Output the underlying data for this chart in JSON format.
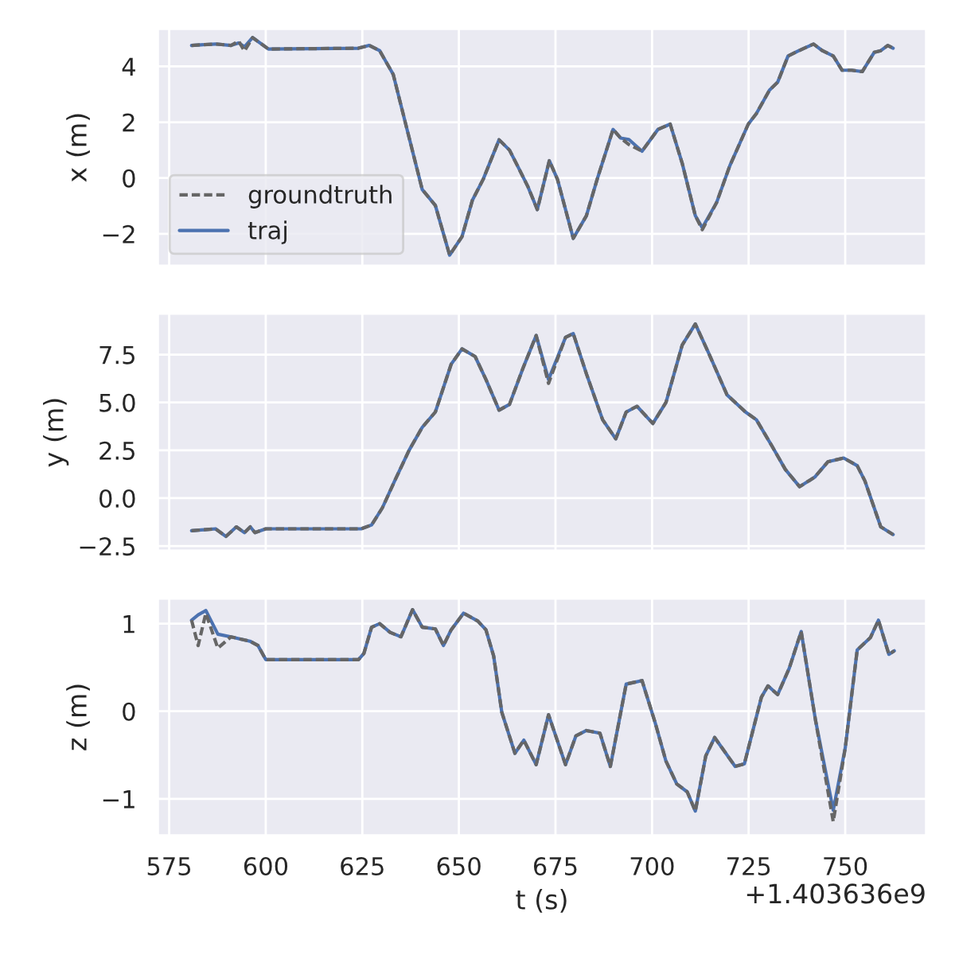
{
  "chart_data": [
    {
      "type": "line",
      "ylabel": "x (m)",
      "legend": "bottom left",
      "grid": true,
      "tick_labels": "y",
      "x": [
        580.8,
        587,
        591,
        593,
        594.5,
        596.6,
        600.7,
        624,
        626.8,
        629.5,
        633,
        636.4,
        640.5,
        643.9,
        647.6,
        650.8,
        653.5,
        656.3,
        660.4,
        663.1,
        665.2,
        667.9,
        670.3,
        673.4,
        675.5,
        679.6,
        683,
        685.8,
        689.9,
        691.9,
        694,
        697.4,
        701.5,
        704.7,
        707.8,
        711.2,
        713,
        716.7,
        720.1,
        724.9,
        727,
        730.4,
        732.5,
        735.2,
        738,
        741.8,
        744.1,
        746.9,
        749.2,
        751.7,
        754.4,
        757.5,
        759.2,
        761,
        762.4
      ],
      "xlim": [
        572,
        771
      ],
      "xticks": [
        575,
        600,
        625,
        650,
        675,
        700,
        725,
        750
      ],
      "ylim": [
        -3.15,
        5.35
      ],
      "yticks": [
        {
          "value": -2,
          "label": "−2"
        },
        0,
        2,
        4
      ],
      "series": [
        {
          "name": "groundtruth",
          "color": "#666666",
          "line_style": "dashed",
          "values": [
            4.75,
            4.8,
            4.75,
            4.9,
            4.55,
            5.03,
            4.62,
            4.65,
            4.75,
            4.56,
            3.71,
            1.84,
            -0.41,
            -0.98,
            -2.76,
            -2.1,
            -0.79,
            -0.04,
            1.37,
            1.0,
            0.43,
            -0.32,
            -1.13,
            0.62,
            -0.04,
            -2.16,
            -1.35,
            -0.04,
            1.74,
            1.43,
            1.2,
            0.96,
            1.74,
            1.93,
            0.53,
            -1.35,
            -1.85,
            -0.88,
            0.43,
            1.93,
            2.31,
            3.15,
            3.43,
            4.37,
            4.56,
            4.8,
            4.56,
            4.37,
            3.86,
            3.86,
            3.81,
            4.5,
            4.56,
            4.75,
            4.65
          ]
        },
        {
          "name": "traj",
          "color": "#4c72b0",
          "line_style": "solid",
          "values": [
            4.75,
            4.8,
            4.75,
            4.84,
            4.7,
            5.03,
            4.62,
            4.65,
            4.75,
            4.56,
            3.71,
            1.84,
            -0.41,
            -0.98,
            -2.76,
            -2.1,
            -0.79,
            -0.04,
            1.37,
            1.0,
            0.43,
            -0.32,
            -1.13,
            0.62,
            -0.04,
            -2.16,
            -1.35,
            -0.04,
            1.74,
            1.43,
            1.38,
            0.96,
            1.74,
            1.93,
            0.53,
            -1.35,
            -1.78,
            -0.88,
            0.43,
            1.93,
            2.31,
            3.15,
            3.43,
            4.37,
            4.56,
            4.8,
            4.56,
            4.37,
            3.86,
            3.86,
            3.81,
            4.5,
            4.56,
            4.75,
            4.65
          ]
        }
      ]
    },
    {
      "type": "line",
      "ylabel": "y (m)",
      "grid": true,
      "tick_labels": "y",
      "x": [
        580.8,
        587,
        589.7,
        592.4,
        594.5,
        596,
        597.2,
        600,
        624.7,
        627.4,
        630.2,
        633.6,
        637.1,
        640.5,
        643.9,
        648,
        650.8,
        654.2,
        657,
        660.4,
        663.1,
        666.6,
        670,
        673.2,
        677.6,
        679.6,
        683,
        687.2,
        690.6,
        693.3,
        696.1,
        700.2,
        703.6,
        707.8,
        711.2,
        714.6,
        719.4,
        724.2,
        727,
        731.1,
        734.5,
        738.2,
        742.1,
        745.5,
        749.6,
        753.1,
        755.1,
        759.2,
        762.4
      ],
      "xlim": [
        572,
        771
      ],
      "xticks": [
        575,
        600,
        625,
        650,
        675,
        700,
        725,
        750
      ],
      "ylim": [
        -2.75,
        9.65
      ],
      "yticks": [
        {
          "value": -2.5,
          "label": "−2.5"
        },
        {
          "value": 0,
          "label": "0.0"
        },
        {
          "value": 2.5,
          "label": "2.5"
        },
        {
          "value": 5,
          "label": "5.0"
        },
        {
          "value": 7.5,
          "label": "7.5"
        }
      ],
      "series": [
        {
          "color": "#666666",
          "line_style": "dashed",
          "values": [
            -1.7,
            -1.6,
            -2.0,
            -1.5,
            -1.8,
            -1.5,
            -1.8,
            -1.6,
            -1.6,
            -1.4,
            -0.5,
            1.0,
            2.5,
            3.7,
            4.5,
            7.0,
            7.8,
            7.4,
            6.2,
            4.6,
            4.9,
            6.8,
            8.5,
            6.0,
            8.4,
            8.6,
            6.5,
            4.1,
            3.1,
            4.5,
            4.8,
            3.9,
            5.0,
            8.0,
            9.1,
            7.6,
            5.4,
            4.5,
            4.1,
            2.7,
            1.5,
            0.6,
            1.1,
            1.9,
            2.1,
            1.7,
            0.9,
            -1.5,
            -1.9
          ]
        },
        {
          "color": "#4c72b0",
          "line_style": "solid",
          "values": [
            -1.7,
            -1.6,
            -2.0,
            -1.5,
            -1.8,
            -1.5,
            -1.8,
            -1.6,
            -1.6,
            -1.4,
            -0.5,
            1.0,
            2.5,
            3.7,
            4.5,
            7.0,
            7.8,
            7.4,
            6.2,
            4.6,
            4.9,
            6.8,
            8.5,
            6.2,
            8.4,
            8.6,
            6.5,
            4.1,
            3.1,
            4.5,
            4.8,
            3.9,
            5.0,
            8.0,
            9.1,
            7.6,
            5.4,
            4.5,
            4.1,
            2.7,
            1.5,
            0.6,
            1.1,
            1.9,
            2.1,
            1.7,
            0.9,
            -1.5,
            -1.9
          ]
        }
      ]
    },
    {
      "type": "line",
      "ylabel": "z (m)",
      "xlabel": "t (s)",
      "grid": true,
      "annotations": [
        "+1.403636e9"
      ],
      "x": [
        580.8,
        582.5,
        584.5,
        587.6,
        591,
        595.9,
        598,
        600,
        624,
        625.4,
        627.4,
        629.5,
        632.2,
        635,
        638,
        640.5,
        643.9,
        646,
        648,
        651.2,
        654.9,
        657,
        659,
        661.1,
        664.5,
        666.8,
        670,
        673.2,
        677.6,
        680.3,
        683,
        686.5,
        689.2,
        693.3,
        697.4,
        700.8,
        703.6,
        706.4,
        709.1,
        711.2,
        713.9,
        716.2,
        721.5,
        723.9,
        728.3,
        730,
        732.5,
        735.5,
        738.6,
        742.3,
        746.9,
        750,
        753.1,
        756.5,
        758.6,
        761.3,
        762.7
      ],
      "xlim": [
        572,
        771
      ],
      "xticks": [
        575,
        600,
        625,
        650,
        675,
        700,
        725,
        750
      ],
      "ylim": [
        -1.42,
        1.29
      ],
      "yticks": [
        {
          "value": -1,
          "label": "−1"
        },
        0,
        1
      ],
      "series": [
        {
          "color": "#666666",
          "line_style": "dashed",
          "values": [
            1.04,
            0.75,
            1.12,
            0.72,
            0.85,
            0.8,
            0.75,
            0.59,
            0.59,
            0.66,
            0.96,
            1.0,
            0.9,
            0.85,
            1.16,
            0.96,
            0.94,
            0.75,
            0.93,
            1.12,
            1.03,
            0.93,
            0.63,
            -0.01,
            -0.48,
            -0.33,
            -0.61,
            -0.04,
            -0.61,
            -0.28,
            -0.22,
            -0.25,
            -0.63,
            0.31,
            0.35,
            -0.13,
            -0.57,
            -0.83,
            -0.92,
            -1.14,
            -0.51,
            -0.3,
            -0.63,
            -0.6,
            0.16,
            0.29,
            0.19,
            0.49,
            0.91,
            -0.1,
            -1.26,
            -0.42,
            0.7,
            0.84,
            1.04,
            0.65,
            0.69
          ]
        },
        {
          "color": "#4c72b0",
          "line_style": "solid",
          "values": [
            1.04,
            1.1,
            1.15,
            0.88,
            0.85,
            0.8,
            0.75,
            0.59,
            0.59,
            0.66,
            0.96,
            1.0,
            0.9,
            0.85,
            1.16,
            0.96,
            0.94,
            0.75,
            0.93,
            1.12,
            1.03,
            0.93,
            0.63,
            -0.01,
            -0.48,
            -0.33,
            -0.61,
            -0.04,
            -0.61,
            -0.28,
            -0.22,
            -0.25,
            -0.63,
            0.31,
            0.35,
            -0.13,
            -0.57,
            -0.83,
            -0.92,
            -1.14,
            -0.51,
            -0.3,
            -0.63,
            -0.6,
            0.16,
            0.29,
            0.19,
            0.49,
            0.91,
            -0.1,
            -1.13,
            -0.42,
            0.7,
            0.84,
            1.04,
            0.65,
            0.69
          ]
        }
      ]
    }
  ]
}
